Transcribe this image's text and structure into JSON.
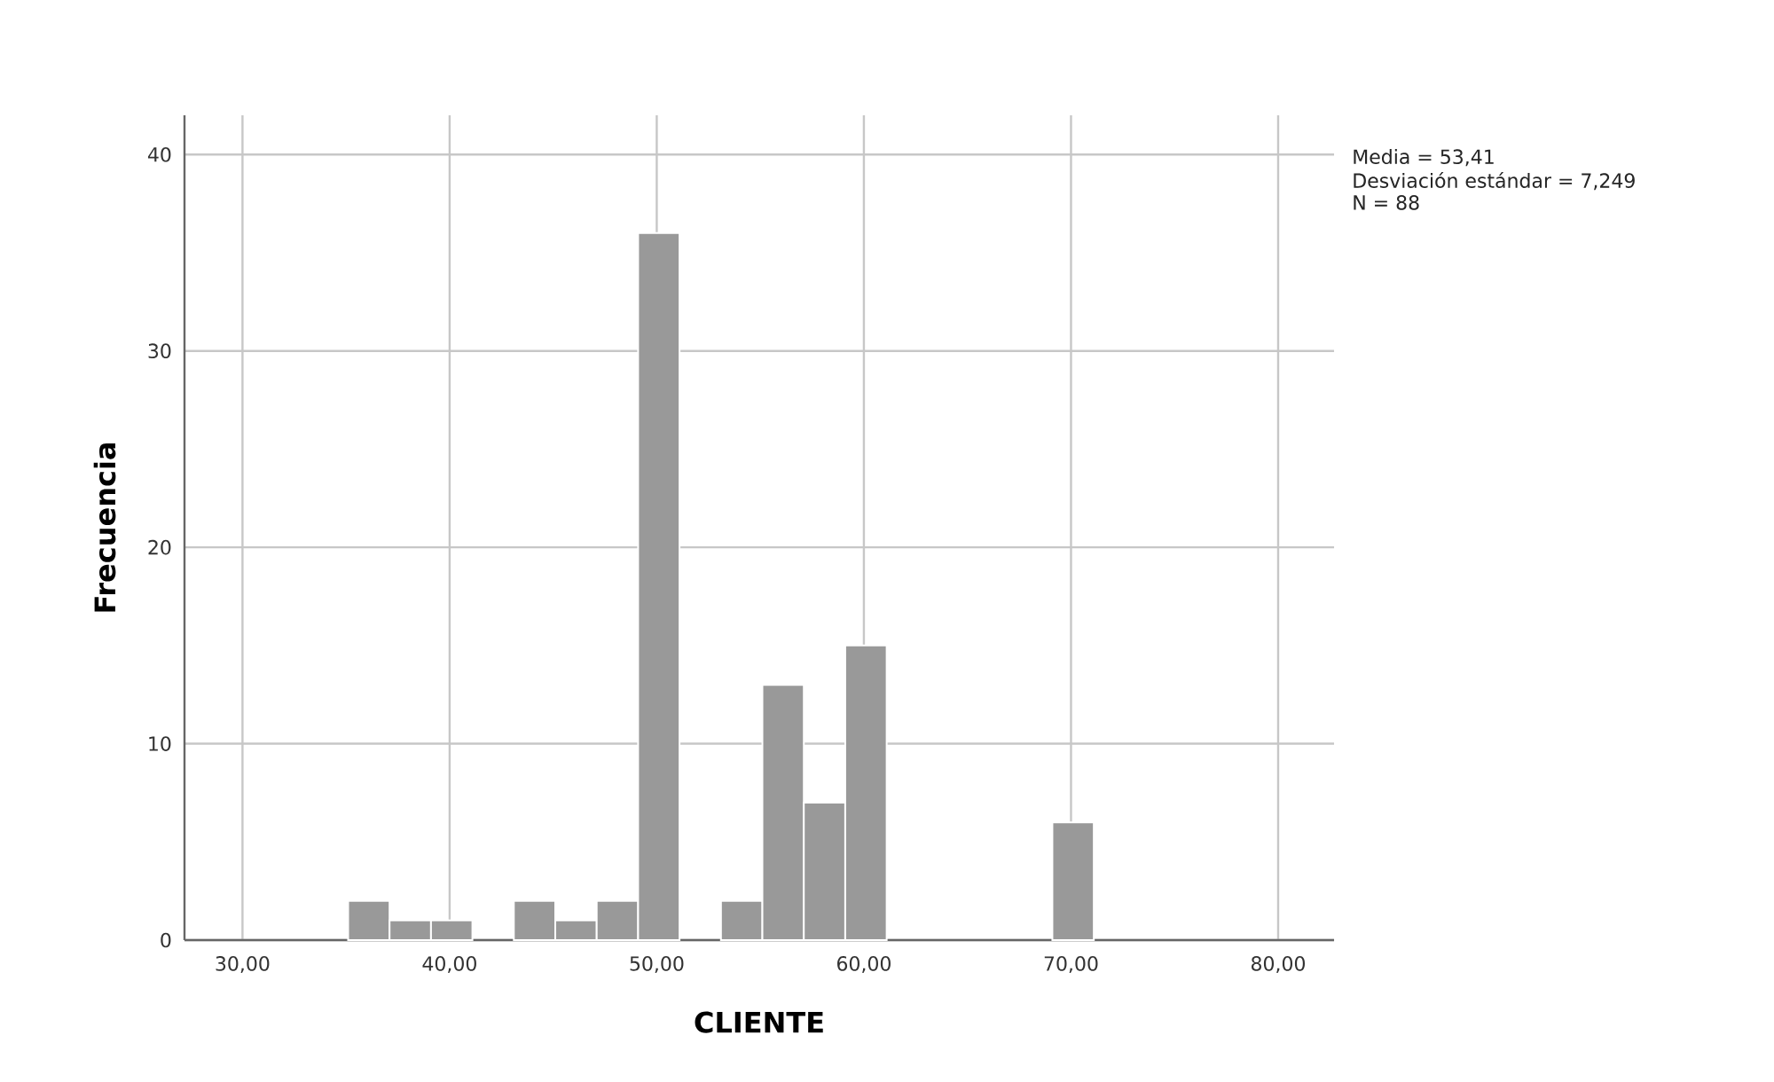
{
  "chart_data": {
    "type": "histogram",
    "xlabel": "CLIENTE",
    "ylabel": "Frecuencia",
    "bins": [
      35.1,
      37.1,
      39.1,
      41.1,
      43.1,
      45.1,
      47.1,
      49.1,
      51.1,
      53.1,
      55.1,
      57.1,
      59.1,
      61.1,
      63.1,
      65.1,
      67.1,
      69.1,
      71.1
    ],
    "values": [
      2,
      1,
      1,
      0,
      2,
      1,
      2,
      36,
      0,
      2,
      13,
      7,
      15,
      0,
      0,
      0,
      0,
      6
    ],
    "color": "#999999",
    "xlim": [
      27.2,
      82.7
    ],
    "ylim": [
      0,
      42
    ],
    "xticks": [
      {
        "value": 30,
        "label": "30,00"
      },
      {
        "value": 40,
        "label": "40,00"
      },
      {
        "value": 50,
        "label": "50,00"
      },
      {
        "value": 60,
        "label": "60,00"
      },
      {
        "value": 70,
        "label": "70,00"
      },
      {
        "value": 80,
        "label": "80,00"
      }
    ],
    "yticks": [
      0,
      10,
      20,
      30,
      40
    ],
    "grid": true,
    "annotations": [
      "Media = 53,41",
      "Desviación estándar = 7,249",
      "N = 88"
    ]
  }
}
